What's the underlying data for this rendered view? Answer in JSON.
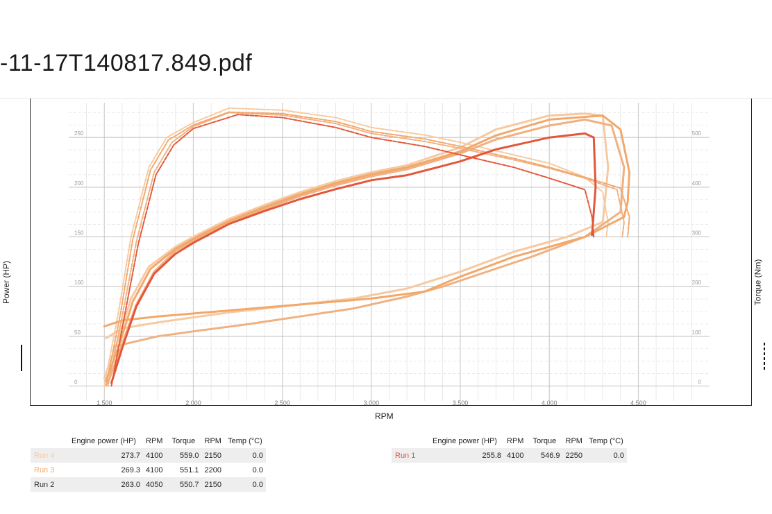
{
  "document": {
    "title": "-11-17T140817.849.pdf"
  },
  "axes": {
    "x_label": "RPM",
    "y_left_label": "Power (HP)",
    "y_right_label": "Torque (Nm)"
  },
  "chart_data": {
    "type": "line",
    "xlim": [
      1300,
      4900
    ],
    "ylim_left": [
      -15,
      285
    ],
    "ylim_right": [
      -30,
      570
    ],
    "x_ticks": [
      "1.500",
      "2.000",
      "2.500",
      "3.000",
      "3.500",
      "4.000",
      "4.500"
    ],
    "x_tick_values": [
      1500,
      2000,
      2500,
      3000,
      3500,
      4000,
      4500
    ],
    "y_left_ticks": [
      "0",
      "50",
      "100",
      "150",
      "200",
      "250"
    ],
    "y_left_tick_values": [
      0,
      50,
      100,
      150,
      200,
      250
    ],
    "y_right_ticks": [
      "0",
      "100",
      "200",
      "300",
      "400",
      "500"
    ],
    "y_right_tick_values": [
      0,
      100,
      200,
      300,
      400,
      500
    ],
    "grid": true,
    "series": [
      {
        "name": "Run 4",
        "color": "#f7c9a0",
        "axis": "left",
        "style": "solid",
        "x": [
          1500,
          1580,
          1650,
          1750,
          1900,
          2000,
          2200,
          2400,
          2600,
          2800,
          3000,
          3200,
          3500,
          3700,
          4000,
          4200,
          4300,
          4330,
          4310,
          4300,
          4100,
          3800,
          3500,
          3200,
          2900,
          2600,
          2200,
          1800,
          1600,
          1510
        ],
        "y": [
          8,
          48,
          88,
          120,
          140,
          150,
          168,
          182,
          195,
          206,
          215,
          222,
          240,
          258,
          272,
          274,
          272,
          220,
          180,
          165,
          150,
          135,
          115,
          98,
          88,
          82,
          74,
          64,
          58,
          48
        ]
      },
      {
        "name": "Run 3",
        "color": "#f2a86a",
        "axis": "left",
        "style": "solid",
        "x": [
          1510,
          1590,
          1660,
          1760,
          1900,
          2000,
          2200,
          2400,
          2600,
          2800,
          3000,
          3200,
          3500,
          3700,
          4000,
          4300,
          4400,
          4450,
          4440,
          4420,
          4200,
          3800,
          3500,
          3300,
          3000,
          2600,
          2200,
          1800,
          1600,
          1500
        ],
        "y": [
          5,
          45,
          85,
          118,
          138,
          148,
          166,
          180,
          193,
          204,
          213,
          220,
          236,
          252,
          268,
          272,
          258,
          215,
          185,
          170,
          150,
          130,
          110,
          95,
          88,
          82,
          76,
          70,
          66,
          60
        ]
      },
      {
        "name": "Run 2",
        "color": "#f0b080",
        "axis": "left",
        "style": "solid",
        "x": [
          1520,
          1600,
          1680,
          1780,
          1900,
          2000,
          2200,
          2400,
          2600,
          2800,
          3000,
          3200,
          3500,
          3700,
          4000,
          4200,
          4350,
          4420,
          4400,
          4200,
          3900,
          3600,
          3400,
          3200,
          2900,
          2600,
          2300,
          2000,
          1800,
          1560
        ],
        "y": [
          3,
          42,
          82,
          115,
          136,
          146,
          164,
          178,
          191,
          202,
          211,
          218,
          234,
          248,
          262,
          268,
          262,
          220,
          175,
          150,
          130,
          112,
          100,
          90,
          78,
          70,
          62,
          55,
          50,
          40
        ]
      },
      {
        "name": "Run 1",
        "color": "#e2573a",
        "axis": "left",
        "style": "solid",
        "x": [
          1540,
          1600,
          1680,
          1780,
          1900,
          2000,
          2200,
          2400,
          2600,
          2800,
          3000,
          3200,
          3500,
          3700,
          4000,
          4200,
          4250,
          4260,
          4240
        ],
        "y": [
          3,
          38,
          80,
          113,
          133,
          144,
          163,
          176,
          188,
          198,
          207,
          212,
          226,
          238,
          250,
          254,
          250,
          200,
          152
        ]
      },
      {
        "name": "Run 4",
        "color": "#f7c9a0",
        "axis": "right",
        "style": "dashed",
        "x": [
          1500,
          1580,
          1650,
          1750,
          1850,
          2000,
          2200,
          2500,
          2800,
          3000,
          3300,
          3500,
          3800,
          4000,
          4200,
          4300,
          4330,
          4320
        ],
        "y": [
          0,
          150,
          300,
          440,
          500,
          530,
          559,
          555,
          540,
          520,
          505,
          490,
          465,
          448,
          420,
          390,
          330,
          300
        ]
      },
      {
        "name": "Run 3",
        "color": "#f2a86a",
        "axis": "right",
        "style": "dashed",
        "x": [
          1510,
          1590,
          1660,
          1760,
          1860,
          2000,
          2200,
          2500,
          2800,
          3000,
          3300,
          3500,
          3800,
          4000,
          4200,
          4400,
          4450,
          4440
        ],
        "y": [
          0,
          145,
          295,
          435,
          495,
          525,
          551,
          548,
          532,
          512,
          497,
          482,
          458,
          440,
          420,
          398,
          340,
          300
        ]
      },
      {
        "name": "Run 2",
        "color": "#f0b080",
        "axis": "right",
        "style": "dashed",
        "x": [
          1520,
          1600,
          1680,
          1780,
          1880,
          2000,
          2200,
          2500,
          2800,
          3000,
          3300,
          3500,
          3800,
          4000,
          4200,
          4380,
          4420,
          4410
        ],
        "y": [
          0,
          140,
          290,
          430,
          490,
          522,
          550,
          545,
          528,
          508,
          492,
          478,
          455,
          438,
          418,
          395,
          330,
          300
        ]
      },
      {
        "name": "Run 1",
        "color": "#e2573a",
        "axis": "right",
        "style": "dashed",
        "x": [
          1540,
          1610,
          1690,
          1790,
          1890,
          2000,
          2250,
          2500,
          2800,
          3000,
          3300,
          3500,
          3800,
          4000,
          4200,
          4240,
          4250
        ],
        "y": [
          0,
          135,
          285,
          425,
          485,
          518,
          546,
          540,
          520,
          500,
          482,
          465,
          440,
          418,
          395,
          340,
          300
        ]
      }
    ]
  },
  "tables": {
    "headers": [
      "Engine power (HP)",
      "RPM",
      "Torque",
      "RPM",
      "Temp (°C)"
    ],
    "left": [
      {
        "name": "Run 4",
        "color": "#f7c9a0",
        "power": "273.7",
        "rpm_power": "4100",
        "torque": "559.0",
        "rpm_torque": "2150",
        "temp": "0.0"
      },
      {
        "name": "Run 3",
        "color": "#f2a86a",
        "power": "269.3",
        "rpm_power": "4100",
        "torque": "551.1",
        "rpm_torque": "2200",
        "temp": "0.0"
      },
      {
        "name": "Run 2",
        "color": "#333333",
        "power": "263.0",
        "rpm_power": "4050",
        "torque": "550.7",
        "rpm_torque": "2150",
        "temp": "0.0"
      }
    ],
    "right": [
      {
        "name": "Run 1",
        "color": "#e2573a",
        "power": "255.8",
        "rpm_power": "4100",
        "torque": "546.9",
        "rpm_torque": "2250",
        "temp": "0.0"
      }
    ]
  }
}
